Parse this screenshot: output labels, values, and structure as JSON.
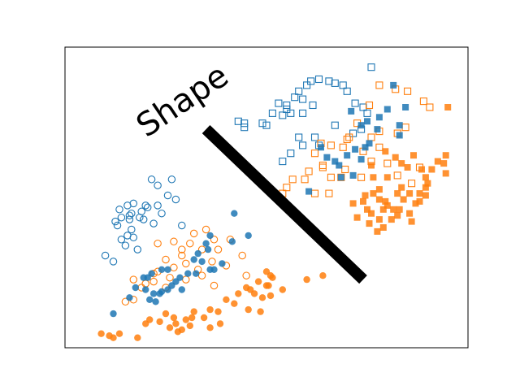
{
  "chart_data": {
    "type": "scatter",
    "title": "Shape",
    "xlabel": "",
    "ylabel": "",
    "xlim": [
      0,
      10
    ],
    "ylim": [
      0,
      7.5
    ],
    "grid": false,
    "ticks_visible": false,
    "decision_line": {
      "x": [
        3.5,
        7.4
      ],
      "y": [
        5.45,
        1.7
      ],
      "color": "#000000"
    },
    "colors": {
      "blue": "#1f77b4",
      "orange": "#ff7f0e"
    },
    "series": [
      {
        "marker": "circle",
        "fill": "hollow",
        "color": "#1f77b4",
        "points": [
          [
            2.15,
            4.2
          ],
          [
            2.3,
            4.05
          ],
          [
            2.65,
            4.2
          ],
          [
            2.75,
            3.7
          ],
          [
            1.4,
            3.25
          ],
          [
            1.55,
            3.55
          ],
          [
            1.65,
            3.35
          ],
          [
            1.35,
            3.45
          ],
          [
            1.6,
            3.3
          ],
          [
            1.85,
            3.25
          ],
          [
            1.3,
            3.05
          ],
          [
            1.25,
            3.15
          ],
          [
            2.55,
            3.8
          ],
          [
            2.05,
            3.5
          ],
          [
            2.9,
            3.05
          ],
          [
            2.2,
            3.1
          ],
          [
            1.95,
            3.2
          ],
          [
            2.0,
            3.55
          ],
          [
            1.65,
            2.95
          ],
          [
            1.7,
            2.75
          ],
          [
            1.5,
            2.55
          ],
          [
            1.4,
            2.7
          ],
          [
            1.7,
            3.6
          ],
          [
            1.9,
            3.4
          ],
          [
            1.55,
            2.8
          ],
          [
            1.0,
            2.3
          ],
          [
            1.2,
            2.15
          ],
          [
            1.8,
            2.45
          ],
          [
            2.4,
            3.35
          ],
          [
            2.3,
            3.55
          ],
          [
            1.6,
            3.2
          ]
        ]
      },
      {
        "marker": "circle",
        "fill": "hollow",
        "color": "#ff7f0e",
        "points": [
          [
            3.5,
            2.95
          ],
          [
            3.7,
            2.7
          ],
          [
            2.7,
            2.65
          ],
          [
            2.9,
            2.45
          ],
          [
            3.1,
            2.6
          ],
          [
            2.9,
            2.3
          ],
          [
            2.5,
            2.2
          ],
          [
            2.7,
            2.0
          ],
          [
            3.0,
            2.1
          ],
          [
            3.4,
            2.45
          ],
          [
            3.0,
            1.7
          ],
          [
            3.3,
            1.95
          ],
          [
            3.7,
            1.55
          ],
          [
            3.65,
            2.15
          ],
          [
            3.8,
            2.45
          ],
          [
            4.1,
            2.7
          ],
          [
            4.4,
            2.3
          ],
          [
            2.6,
            1.75
          ],
          [
            2.5,
            1.5
          ],
          [
            2.2,
            1.65
          ],
          [
            2.3,
            1.9
          ],
          [
            2.0,
            1.6
          ],
          [
            1.9,
            1.5
          ],
          [
            1.7,
            1.7
          ],
          [
            2.2,
            1.85
          ],
          [
            3.2,
            2.85
          ],
          [
            3.4,
            1.8
          ],
          [
            1.5,
            1.15
          ],
          [
            1.7,
            1.2
          ],
          [
            2.3,
            2.6
          ],
          [
            4.0,
            2.05
          ],
          [
            4.5,
            1.8
          ]
        ]
      },
      {
        "marker": "circle",
        "fill": "solid",
        "color": "#1f77b4",
        "points": [
          [
            4.2,
            3.35
          ],
          [
            4.55,
            2.8
          ],
          [
            3.6,
            2.8
          ],
          [
            3.55,
            2.45
          ],
          [
            3.3,
            2.35
          ],
          [
            3.2,
            2.2
          ],
          [
            3.4,
            2.15
          ],
          [
            3.5,
            2.6
          ],
          [
            3.9,
            2.1
          ],
          [
            3.25,
            1.85
          ],
          [
            3.05,
            1.85
          ],
          [
            2.85,
            1.75
          ],
          [
            2.75,
            1.65
          ],
          [
            2.65,
            1.55
          ],
          [
            2.55,
            1.45
          ],
          [
            2.9,
            1.45
          ],
          [
            2.4,
            1.4
          ],
          [
            2.35,
            1.35
          ],
          [
            2.55,
            1.95
          ],
          [
            2.4,
            1.95
          ],
          [
            2.15,
            1.85
          ],
          [
            2.05,
            1.75
          ],
          [
            1.95,
            1.75
          ],
          [
            2.0,
            1.45
          ],
          [
            2.2,
            1.35
          ],
          [
            2.1,
            1.2
          ],
          [
            2.25,
            1.15
          ],
          [
            3.6,
            1.95
          ],
          [
            3.7,
            1.95
          ],
          [
            4.15,
            2.65
          ],
          [
            1.6,
            1.25
          ],
          [
            1.2,
            0.85
          ],
          [
            1.75,
            1.5
          ]
        ]
      },
      {
        "marker": "circle",
        "fill": "solid",
        "color": "#ff7f0e",
        "points": [
          [
            5.0,
            1.9
          ],
          [
            5.1,
            1.8
          ],
          [
            5.0,
            1.55
          ],
          [
            4.8,
            1.65
          ],
          [
            4.6,
            1.45
          ],
          [
            4.5,
            1.5
          ],
          [
            4.7,
            1.35
          ],
          [
            4.9,
            1.25
          ],
          [
            4.3,
            1.35
          ],
          [
            4.2,
            1.1
          ],
          [
            4.0,
            1.2
          ],
          [
            3.8,
            0.9
          ],
          [
            3.6,
            0.95
          ],
          [
            3.85,
            0.6
          ],
          [
            3.6,
            0.5
          ],
          [
            3.45,
            0.75
          ],
          [
            3.2,
            0.9
          ],
          [
            3.15,
            0.75
          ],
          [
            3.1,
            0.55
          ],
          [
            2.9,
            0.45
          ],
          [
            2.8,
            0.4
          ],
          [
            2.6,
            0.5
          ],
          [
            2.7,
            0.75
          ],
          [
            2.5,
            0.85
          ],
          [
            2.35,
            0.65
          ],
          [
            2.1,
            0.7
          ],
          [
            5.15,
            1.75
          ],
          [
            5.05,
            1.55
          ],
          [
            4.55,
            0.95
          ],
          [
            4.85,
            0.9
          ],
          [
            6.0,
            1.7
          ],
          [
            6.4,
            1.8
          ],
          [
            5.4,
            1.45
          ],
          [
            5.1,
            1.3
          ],
          [
            3.0,
            0.7
          ],
          [
            2.75,
            0.6
          ],
          [
            2.0,
            0.6
          ],
          [
            1.8,
            0.25
          ],
          [
            1.35,
            0.35
          ],
          [
            1.2,
            0.25
          ],
          [
            1.1,
            0.3
          ],
          [
            0.9,
            0.35
          ]
        ]
      },
      {
        "marker": "square",
        "fill": "hollow",
        "color": "#1f77b4",
        "points": [
          [
            7.6,
            7.0
          ],
          [
            6.3,
            6.7
          ],
          [
            6.1,
            6.65
          ],
          [
            6.0,
            6.55
          ],
          [
            6.55,
            6.65
          ],
          [
            6.7,
            6.6
          ],
          [
            5.8,
            6.4
          ],
          [
            5.9,
            6.2
          ],
          [
            5.7,
            6.25
          ],
          [
            5.5,
            6.05
          ],
          [
            5.3,
            6.1
          ],
          [
            5.5,
            5.95
          ],
          [
            5.6,
            5.85
          ],
          [
            5.4,
            5.8
          ],
          [
            5.15,
            5.85
          ],
          [
            5.0,
            5.55
          ],
          [
            4.9,
            5.6
          ],
          [
            4.45,
            5.6
          ],
          [
            4.3,
            5.65
          ],
          [
            4.45,
            5.5
          ],
          [
            6.9,
            6.55
          ],
          [
            7.0,
            6.4
          ],
          [
            7.2,
            6.1
          ],
          [
            7.4,
            6.0
          ],
          [
            5.8,
            5.25
          ],
          [
            6.2,
            5.25
          ],
          [
            5.9,
            5.05
          ],
          [
            5.4,
            4.65
          ],
          [
            5.6,
            4.85
          ],
          [
            6.3,
            5.05
          ],
          [
            6.7,
            5.55
          ],
          [
            7.15,
            5.35
          ],
          [
            7.35,
            5.45
          ],
          [
            5.9,
            5.85
          ],
          [
            6.15,
            6.05
          ],
          [
            7.5,
            5.85
          ]
        ]
      },
      {
        "marker": "square",
        "fill": "hollow",
        "color": "#ff7f0e",
        "points": [
          [
            7.8,
            6.55
          ],
          [
            8.5,
            6.4
          ],
          [
            8.2,
            6.45
          ],
          [
            8.9,
            6.15
          ],
          [
            9.05,
            6.0
          ],
          [
            7.55,
            6.05
          ],
          [
            7.25,
            5.6
          ],
          [
            7.8,
            5.4
          ],
          [
            8.25,
            5.35
          ],
          [
            8.45,
            5.5
          ],
          [
            7.0,
            5.2
          ],
          [
            7.6,
            5.25
          ],
          [
            6.9,
            5.0
          ],
          [
            6.6,
            5.05
          ],
          [
            6.35,
            5.1
          ],
          [
            6.2,
            4.85
          ],
          [
            6.4,
            4.55
          ],
          [
            6.05,
            4.4
          ],
          [
            5.95,
            4.2
          ],
          [
            5.65,
            4.2
          ],
          [
            5.5,
            4.0
          ],
          [
            5.4,
            3.85
          ],
          [
            6.2,
            3.85
          ],
          [
            6.55,
            3.85
          ],
          [
            6.4,
            4.5
          ],
          [
            6.85,
            4.25
          ],
          [
            6.95,
            4.45
          ],
          [
            7.4,
            4.9
          ],
          [
            7.6,
            4.65
          ],
          [
            8.8,
            4.5
          ],
          [
            8.6,
            4.1
          ],
          [
            8.25,
            4.3
          ],
          [
            8.0,
            4.6
          ],
          [
            7.35,
            4.25
          ],
          [
            6.6,
            4.25
          ],
          [
            7.8,
            5.0
          ],
          [
            7.05,
            5.25
          ]
        ]
      },
      {
        "marker": "square",
        "fill": "solid",
        "color": "#1f77b4",
        "points": [
          [
            8.15,
            6.55
          ],
          [
            8.0,
            5.95
          ],
          [
            8.3,
            5.55
          ],
          [
            8.3,
            5.3
          ],
          [
            7.1,
            5.9
          ],
          [
            7.5,
            5.65
          ],
          [
            7.75,
            5.45
          ],
          [
            8.45,
            6.0
          ],
          [
            7.55,
            5.1
          ],
          [
            7.2,
            4.95
          ],
          [
            6.8,
            4.55
          ],
          [
            6.7,
            4.65
          ],
          [
            7.0,
            4.8
          ],
          [
            7.35,
            4.7
          ],
          [
            6.5,
            4.75
          ],
          [
            7.35,
            5.55
          ],
          [
            7.8,
            5.75
          ],
          [
            6.05,
            3.9
          ],
          [
            7.15,
            4.3
          ],
          [
            6.35,
            5.0
          ],
          [
            6.85,
            4.25
          ],
          [
            7.45,
            5.0
          ]
        ]
      },
      {
        "marker": "square",
        "fill": "solid",
        "color": "#ff7f0e",
        "points": [
          [
            9.5,
            6.0
          ],
          [
            9.45,
            4.8
          ],
          [
            9.45,
            4.35
          ],
          [
            9.25,
            4.65
          ],
          [
            9.1,
            4.45
          ],
          [
            8.95,
            4.25
          ],
          [
            8.85,
            4.45
          ],
          [
            8.95,
            4.0
          ],
          [
            8.8,
            3.85
          ],
          [
            8.7,
            3.6
          ],
          [
            8.55,
            3.85
          ],
          [
            8.35,
            4.0
          ],
          [
            8.4,
            3.7
          ],
          [
            8.25,
            3.85
          ],
          [
            8.15,
            3.45
          ],
          [
            8.25,
            3.3
          ],
          [
            8.0,
            3.55
          ],
          [
            7.9,
            3.45
          ],
          [
            7.8,
            3.7
          ],
          [
            7.65,
            3.85
          ],
          [
            7.8,
            3.95
          ],
          [
            7.45,
            3.8
          ],
          [
            7.5,
            3.45
          ],
          [
            7.6,
            3.35
          ],
          [
            7.8,
            3.2
          ],
          [
            7.9,
            3.0
          ],
          [
            8.1,
            3.2
          ],
          [
            8.6,
            3.15
          ],
          [
            8.8,
            3.65
          ],
          [
            7.55,
            3.1
          ],
          [
            7.15,
            3.6
          ],
          [
            7.65,
            4.25
          ],
          [
            8.35,
            4.6
          ],
          [
            8.5,
            4.5
          ],
          [
            8.2,
            4.75
          ],
          [
            7.95,
            4.9
          ],
          [
            8.65,
            4.8
          ],
          [
            7.6,
            4.55
          ],
          [
            8.0,
            4.25
          ],
          [
            7.95,
            3.65
          ],
          [
            8.3,
            3.45
          ],
          [
            8.55,
            3.35
          ],
          [
            8.95,
            3.8
          ],
          [
            9.0,
            4.1
          ],
          [
            9.4,
            4.6
          ],
          [
            7.25,
            3.25
          ],
          [
            7.4,
            3.65
          ],
          [
            7.75,
            2.9
          ]
        ]
      }
    ]
  }
}
